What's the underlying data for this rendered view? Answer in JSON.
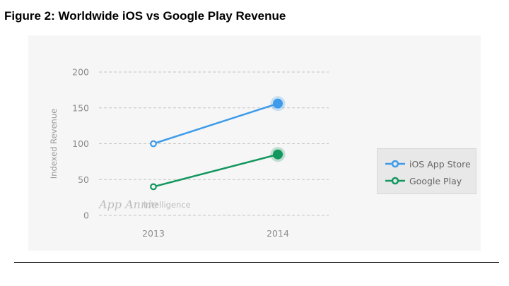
{
  "figure_title": "Figure 2: Worldwide iOS vs Google Play Revenue",
  "watermark": {
    "brand": "App Annie",
    "product": "intelligence"
  },
  "chart_data": {
    "type": "line",
    "title": "Figure 2: Worldwide iOS vs Google Play Revenue",
    "xlabel": "",
    "ylabel": "Indexed Revenue",
    "categories": [
      "2013",
      "2014"
    ],
    "yticks": [
      0,
      50,
      100,
      150,
      200
    ],
    "ylim": [
      0,
      200
    ],
    "grid": true,
    "legend_position": "right",
    "series": [
      {
        "name": "iOS App Store",
        "values": [
          100,
          156
        ],
        "color": "#3d9be9"
      },
      {
        "name": "Google Play",
        "values": [
          40,
          85
        ],
        "color": "#12975e"
      }
    ]
  }
}
